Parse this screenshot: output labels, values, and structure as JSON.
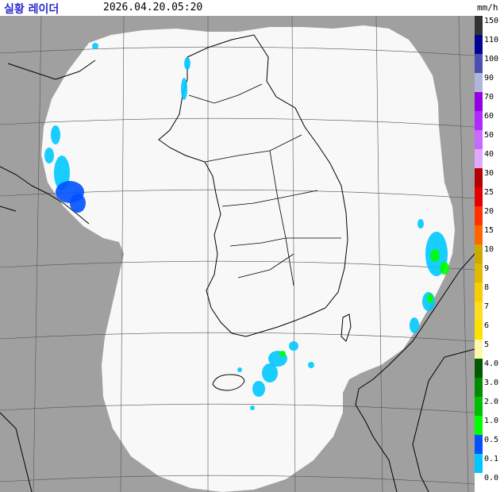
{
  "header": {
    "title": "실황 레이더",
    "timestamp": "2026.04.20.05:20",
    "unit": "mm/h"
  },
  "legend": {
    "items": [
      {
        "label": "150",
        "color": "#333333"
      },
      {
        "label": "110",
        "color": "#000390"
      },
      {
        "label": "100",
        "color": "#4c4eb1"
      },
      {
        "label": "90",
        "color": "#b3b4de"
      },
      {
        "label": "70",
        "color": "#9300e4"
      },
      {
        "label": "60",
        "color": "#b229ff"
      },
      {
        "label": "50",
        "color": "#c969ff"
      },
      {
        "label": "40",
        "color": "#e0a9ff"
      },
      {
        "label": "30",
        "color": "#b40000"
      },
      {
        "label": "25",
        "color": "#e10000"
      },
      {
        "label": "20",
        "color": "#ff3200"
      },
      {
        "label": "15",
        "color": "#ff6600"
      },
      {
        "label": "10",
        "color": "#ccaa00"
      },
      {
        "label": "9",
        "color": "#e0b900"
      },
      {
        "label": "8",
        "color": "#f9cd00"
      },
      {
        "label": "7",
        "color": "#ffdc1f"
      },
      {
        "label": "6",
        "color": "#ffe100"
      },
      {
        "label": "5",
        "color": "#fff9a5"
      },
      {
        "label": "4.0",
        "color": "#005a00"
      },
      {
        "label": "3.0",
        "color": "#008c00"
      },
      {
        "label": "2.0",
        "color": "#00be00"
      },
      {
        "label": "1.0",
        "color": "#00ff00"
      },
      {
        "label": "0.5",
        "color": "#0051ff"
      },
      {
        "label": "0.1",
        "color": "#00c8ff"
      },
      {
        "label": "0.0",
        "color": "#ffffff"
      }
    ]
  },
  "map": {
    "outside_color": "#a0a0a0",
    "coverage_color": "#f8f8f8",
    "grid_color": "#555555",
    "coast_color": "#000000",
    "echo_light_color": "#00c8ff",
    "echo_blue_color": "#0051ff",
    "echo_green_color": "#00ff00"
  }
}
